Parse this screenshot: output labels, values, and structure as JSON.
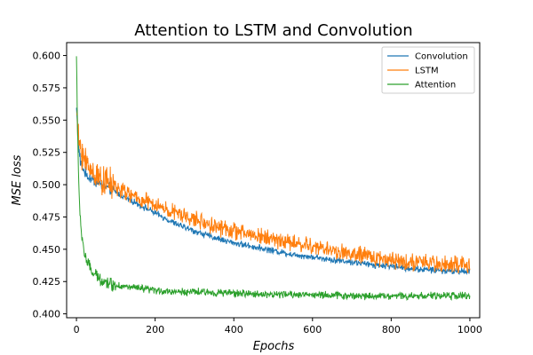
{
  "chart_data": {
    "type": "line",
    "title": "Attention to LSTM and Convolution",
    "xlabel": "Epochs",
    "ylabel": "MSE loss",
    "xlim": [
      -25,
      1025
    ],
    "ylim": [
      0.397,
      0.61
    ],
    "xticks": [
      0,
      200,
      400,
      600,
      800,
      1000
    ],
    "yticks": [
      0.4,
      0.425,
      0.45,
      0.475,
      0.5,
      0.525,
      0.55,
      0.575,
      0.6
    ],
    "ytick_labels": [
      "0.400",
      "0.425",
      "0.450",
      "0.475",
      "0.500",
      "0.525",
      "0.550",
      "0.575",
      "0.600"
    ],
    "grid": false,
    "legend_position": "top-right",
    "series": [
      {
        "name": "Convolution",
        "color": "#1f77b4",
        "x": [
          0,
          5,
          10,
          20,
          30,
          50,
          75,
          100,
          150,
          200,
          250,
          300,
          350,
          400,
          450,
          500,
          550,
          600,
          650,
          700,
          750,
          800,
          850,
          900,
          950,
          1000
        ],
        "values": [
          0.56,
          0.53,
          0.518,
          0.51,
          0.506,
          0.502,
          0.498,
          0.494,
          0.486,
          0.478,
          0.47,
          0.464,
          0.459,
          0.455,
          0.452,
          0.449,
          0.446,
          0.444,
          0.442,
          0.44,
          0.438,
          0.437,
          0.435,
          0.434,
          0.433,
          0.433
        ],
        "noise": 0.003
      },
      {
        "name": "LSTM",
        "color": "#ff7f0e",
        "x": [
          0,
          5,
          10,
          20,
          30,
          50,
          75,
          100,
          150,
          200,
          250,
          300,
          350,
          400,
          450,
          500,
          550,
          600,
          650,
          700,
          750,
          800,
          850,
          900,
          950,
          1000
        ],
        "values": [
          0.555,
          0.535,
          0.528,
          0.52,
          0.514,
          0.508,
          0.502,
          0.498,
          0.49,
          0.484,
          0.478,
          0.473,
          0.468,
          0.464,
          0.461,
          0.458,
          0.455,
          0.452,
          0.449,
          0.446,
          0.444,
          0.442,
          0.44,
          0.439,
          0.438,
          0.437
        ],
        "noise": 0.008
      },
      {
        "name": "Attention",
        "color": "#2ca02c",
        "x": [
          0,
          2,
          5,
          8,
          12,
          20,
          30,
          40,
          60,
          80,
          100,
          150,
          200,
          250,
          300,
          400,
          500,
          600,
          700,
          800,
          900,
          1000
        ],
        "values": [
          0.6,
          0.56,
          0.51,
          0.48,
          0.465,
          0.447,
          0.438,
          0.432,
          0.427,
          0.424,
          0.422,
          0.42,
          0.418,
          0.417,
          0.417,
          0.416,
          0.415,
          0.415,
          0.414,
          0.414,
          0.414,
          0.414
        ],
        "noise": 0.0035
      }
    ]
  }
}
